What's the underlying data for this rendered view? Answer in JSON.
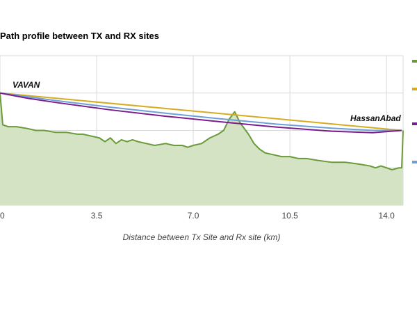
{
  "chart_data": {
    "type": "area",
    "title": "Path profile between TX and RX sites",
    "xlabel": "Distance between Tx Site and Rx site (km)",
    "ylabel": "",
    "xlim": [
      0,
      14.6
    ],
    "ylim": [
      0,
      4
    ],
    "x_ticks": [
      "0",
      "3.5",
      "7.0",
      "10.5",
      "14.0"
    ],
    "x_tick_values": [
      0,
      3.5,
      7.0,
      10.5,
      14.0
    ],
    "grid": true,
    "site_labels": {
      "tx": "VAVAN",
      "rx": "HassanAbad"
    },
    "colors": {
      "terrain_fill": "#d3e3c4",
      "terrain_line": "#6a9a3a",
      "los_line": "#d8ab1f",
      "blue_line": "#6e9fd8",
      "purple_line": "#7a1e8e"
    },
    "series": [
      {
        "kind": "terrain",
        "x": [
          0,
          0.1,
          0.3,
          0.6,
          1.0,
          1.3,
          1.6,
          2.0,
          2.4,
          2.8,
          3.0,
          3.3,
          3.6,
          3.8,
          4.0,
          4.2,
          4.4,
          4.6,
          4.8,
          5.0,
          5.3,
          5.6,
          6.0,
          6.3,
          6.6,
          6.8,
          7.0,
          7.3,
          7.6,
          7.9,
          8.1,
          8.3,
          8.5,
          8.6,
          8.7,
          8.8,
          9.0,
          9.2,
          9.4,
          9.6,
          9.9,
          10.2,
          10.5,
          10.8,
          11.1,
          11.5,
          12.0,
          12.5,
          13.0,
          13.4,
          13.6,
          13.8,
          14.0,
          14.2,
          14.45,
          14.55,
          14.6
        ],
        "y": [
          3.0,
          2.15,
          2.1,
          2.1,
          2.05,
          2.0,
          2.0,
          1.95,
          1.95,
          1.9,
          1.9,
          1.85,
          1.8,
          1.7,
          1.8,
          1.65,
          1.75,
          1.7,
          1.75,
          1.7,
          1.65,
          1.6,
          1.65,
          1.6,
          1.6,
          1.55,
          1.6,
          1.65,
          1.8,
          1.9,
          2.0,
          2.3,
          2.5,
          2.35,
          2.2,
          2.1,
          1.9,
          1.65,
          1.5,
          1.4,
          1.35,
          1.3,
          1.3,
          1.25,
          1.25,
          1.2,
          1.15,
          1.15,
          1.1,
          1.05,
          1.0,
          1.05,
          1.0,
          0.95,
          1.0,
          1.0,
          2.0
        ]
      },
      {
        "kind": "los",
        "x": [
          0,
          14.55
        ],
        "y": [
          3.0,
          2.0
        ]
      },
      {
        "kind": "fresnel",
        "x": [
          0,
          2.0,
          4.0,
          6.0,
          8.0,
          10.0,
          12.0,
          13.5,
          14.55
        ],
        "y": [
          3.0,
          2.8,
          2.62,
          2.46,
          2.31,
          2.17,
          2.06,
          2.0,
          2.0
        ]
      },
      {
        "kind": "earth_curve",
        "x": [
          0,
          1.0,
          2.0,
          4.0,
          6.0,
          8.0,
          10.0,
          12.0,
          13.5,
          14.55
        ],
        "y": [
          3.0,
          2.86,
          2.75,
          2.55,
          2.38,
          2.23,
          2.09,
          1.98,
          1.94,
          2.0
        ]
      }
    ],
    "legend": {
      "placement": "right",
      "colors": [
        "#6a9a3a",
        "#d8ab1f",
        "#7a1e8e",
        "#6e9fd8"
      ]
    }
  }
}
